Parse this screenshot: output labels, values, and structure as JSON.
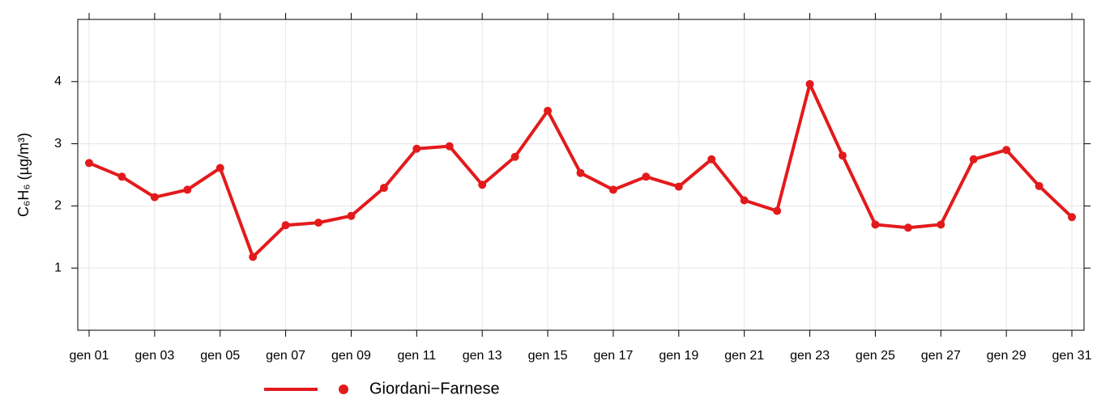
{
  "chart_data": {
    "type": "line",
    "ylabel": "C₆H₆ (µg/m³)",
    "categories": [
      "gen 01",
      null,
      "gen 03",
      null,
      "gen 05",
      null,
      "gen 07",
      null,
      "gen 09",
      null,
      "gen 11",
      null,
      "gen 13",
      null,
      "gen 15",
      null,
      "gen 17",
      null,
      "gen 19",
      null,
      "gen 21",
      null,
      "gen 23",
      null,
      "gen 25",
      null,
      "gen 27",
      null,
      "gen 29",
      null,
      "gen 31"
    ],
    "series": [
      {
        "name": "Giordani−Farnese",
        "color": "#e31a1c",
        "values": [
          2.69,
          2.47,
          2.14,
          2.26,
          2.61,
          1.18,
          1.69,
          1.73,
          1.84,
          2.29,
          2.92,
          2.96,
          2.34,
          2.79,
          3.53,
          2.53,
          2.26,
          2.47,
          2.31,
          2.75,
          2.09,
          1.92,
          3.96,
          2.81,
          1.7,
          1.65,
          1.7,
          2.75,
          2.9,
          2.32,
          1.82
        ]
      }
    ],
    "ylim": [
      0,
      5
    ],
    "yticks": [
      1,
      2,
      3,
      4
    ],
    "grid": true,
    "legend": "bottom"
  }
}
